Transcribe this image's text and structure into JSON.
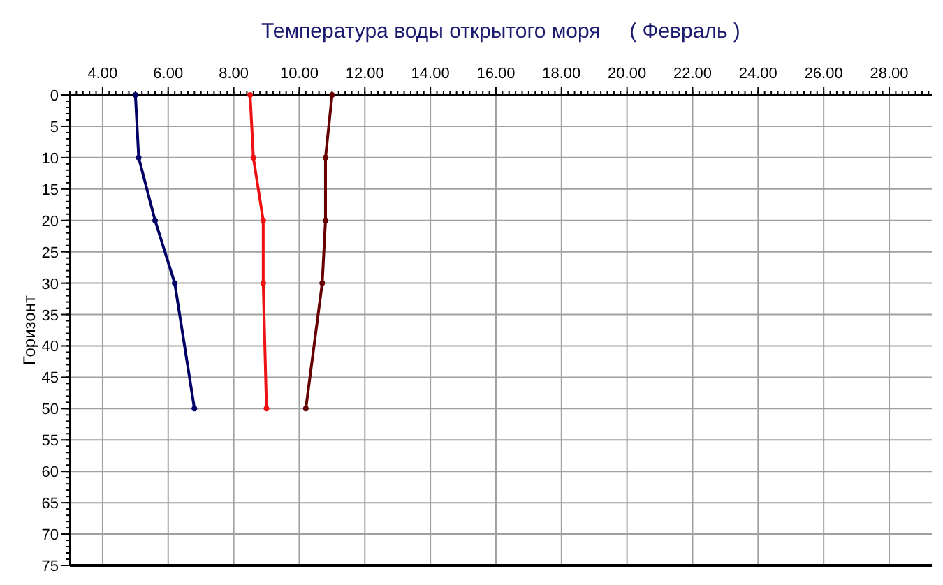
{
  "chart_data": {
    "type": "line",
    "title": "Температура воды открытого моря     ( Февраль )",
    "ylabel": "Горизонт",
    "series": [
      {
        "color": "#000066",
        "x": [
          5.0,
          5.1,
          5.6,
          6.2,
          6.8
        ],
        "values": [
          0,
          10,
          20,
          30,
          50
        ]
      },
      {
        "color": "#ee1111",
        "x": [
          8.5,
          8.6,
          8.9,
          8.9,
          9.0
        ],
        "values": [
          0,
          10,
          20,
          30,
          50
        ]
      },
      {
        "color": "#660000",
        "x": [
          11.0,
          10.8,
          10.8,
          10.7,
          10.2
        ],
        "values": [
          0,
          10,
          20,
          30,
          50
        ]
      }
    ],
    "xlim": [
      3,
      29.3
    ],
    "xticks": [
      {
        "value": 4,
        "label": "4.00"
      },
      {
        "value": 6,
        "label": "6.00"
      },
      {
        "value": 8,
        "label": "8.00"
      },
      {
        "value": 10,
        "label": "10.00"
      },
      {
        "value": 12,
        "label": "12.00"
      },
      {
        "value": 14,
        "label": "14.00"
      },
      {
        "value": 16,
        "label": "16.00"
      },
      {
        "value": 18,
        "label": "18.00"
      },
      {
        "value": 20,
        "label": "20.00"
      },
      {
        "value": 22,
        "label": "22.00"
      },
      {
        "value": 24,
        "label": "24.00"
      },
      {
        "value": 26,
        "label": "26.00"
      },
      {
        "value": 28,
        "label": "28.00"
      }
    ],
    "ylim": [
      75,
      0
    ],
    "yticks": [
      0,
      5,
      10,
      15,
      20,
      25,
      30,
      35,
      40,
      45,
      50,
      55,
      60,
      65,
      70,
      75
    ],
    "grid": true,
    "marker": "circle",
    "line_style": "solid"
  }
}
